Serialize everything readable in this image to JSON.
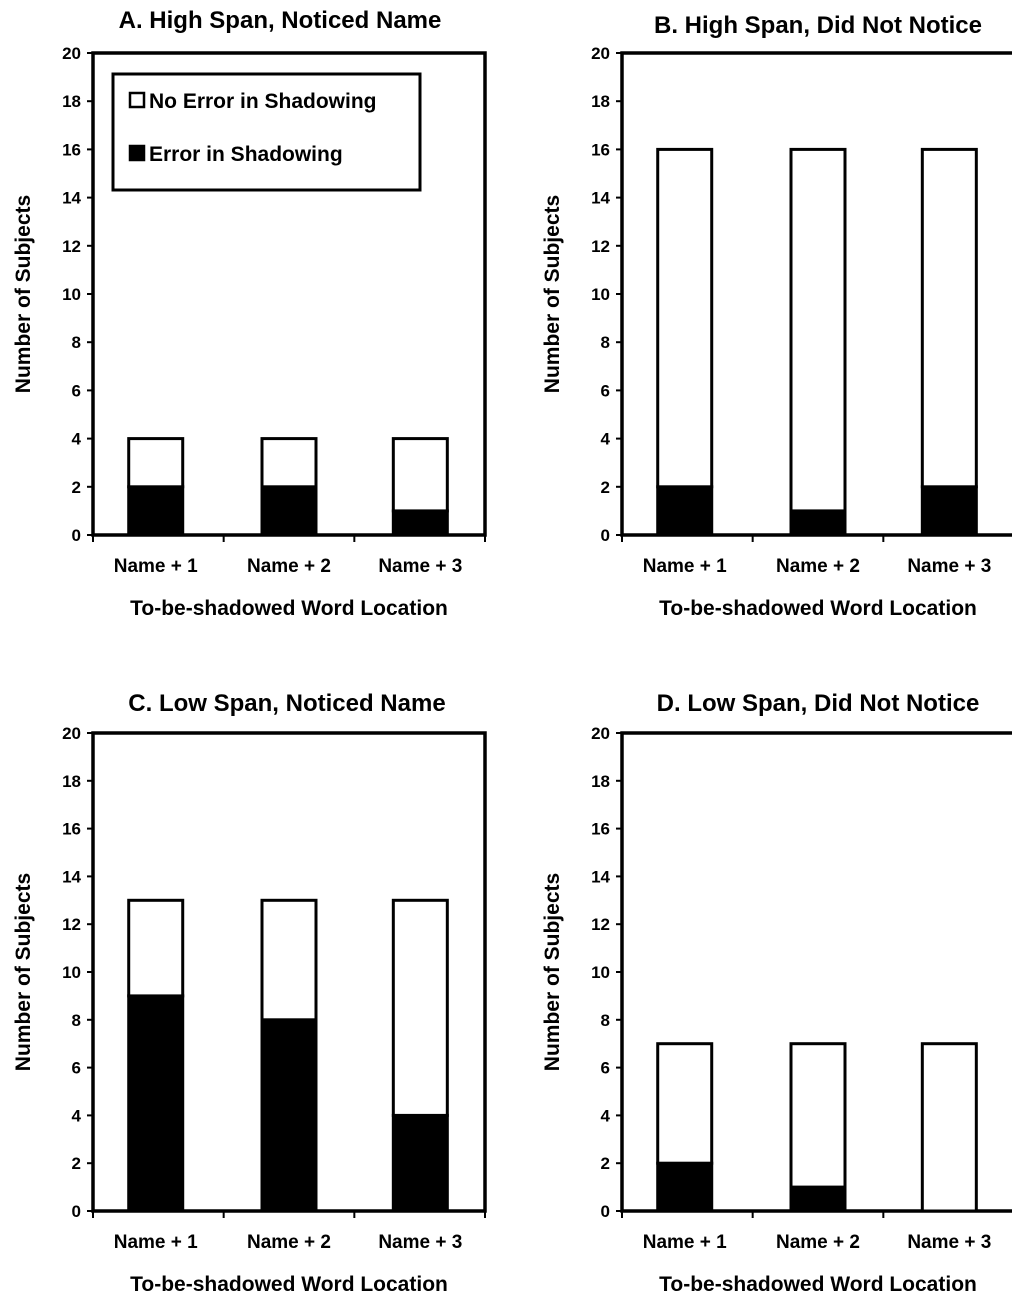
{
  "chart_data": [
    {
      "type": "bar",
      "stacked": true,
      "title": "A.  High Span, Noticed Name",
      "xlabel": "To-be-shadowed Word Location",
      "ylabel": "Number of Subjects",
      "ylim": [
        0,
        20
      ],
      "yticks": [
        0,
        2,
        4,
        6,
        8,
        10,
        12,
        14,
        16,
        18,
        20
      ],
      "categories": [
        "Name + 1",
        "Name + 2",
        "Name + 3"
      ],
      "series": [
        {
          "name": "Error in Shadowing",
          "color": "#000000",
          "values": [
            2,
            2,
            1
          ]
        },
        {
          "name": "No Error in Shadowing",
          "color": "#ffffff",
          "values": [
            2,
            2,
            3
          ]
        }
      ],
      "legend": {
        "placement": "top-left",
        "entries": [
          "No Error in Shadowing",
          "Error in Shadowing"
        ]
      }
    },
    {
      "type": "bar",
      "stacked": true,
      "title": "B.  High Span, Did Not Notice",
      "xlabel": "To-be-shadowed Word Location",
      "ylabel": "Number of Subjects",
      "ylim": [
        0,
        20
      ],
      "yticks": [
        0,
        2,
        4,
        6,
        8,
        10,
        12,
        14,
        16,
        18,
        20
      ],
      "categories": [
        "Name + 1",
        "Name + 2",
        "Name + 3"
      ],
      "series": [
        {
          "name": "Error in Shadowing",
          "color": "#000000",
          "values": [
            2,
            1,
            2
          ]
        },
        {
          "name": "No Error in Shadowing",
          "color": "#ffffff",
          "values": [
            14,
            15,
            14
          ]
        }
      ]
    },
    {
      "type": "bar",
      "stacked": true,
      "title": "C.  Low Span, Noticed Name",
      "xlabel": "To-be-shadowed Word Location",
      "ylabel": "Number of Subjects",
      "ylim": [
        0,
        20
      ],
      "yticks": [
        0,
        2,
        4,
        6,
        8,
        10,
        12,
        14,
        16,
        18,
        20
      ],
      "categories": [
        "Name + 1",
        "Name + 2",
        "Name + 3"
      ],
      "series": [
        {
          "name": "Error in Shadowing",
          "color": "#000000",
          "values": [
            9,
            8,
            4
          ]
        },
        {
          "name": "No Error in Shadowing",
          "color": "#ffffff",
          "values": [
            4,
            5,
            9
          ]
        }
      ]
    },
    {
      "type": "bar",
      "stacked": true,
      "title": "D.  Low Span, Did Not Notice",
      "xlabel": "To-be-shadowed Word Location",
      "ylabel": "Number of Subjects",
      "ylim": [
        0,
        20
      ],
      "yticks": [
        0,
        2,
        4,
        6,
        8,
        10,
        12,
        14,
        16,
        18,
        20
      ],
      "categories": [
        "Name + 1",
        "Name + 2",
        "Name + 3"
      ],
      "series": [
        {
          "name": "Error in Shadowing",
          "color": "#000000",
          "values": [
            2,
            1,
            0
          ]
        },
        {
          "name": "No Error in Shadowing",
          "color": "#ffffff",
          "values": [
            5,
            6,
            7
          ]
        }
      ]
    }
  ]
}
